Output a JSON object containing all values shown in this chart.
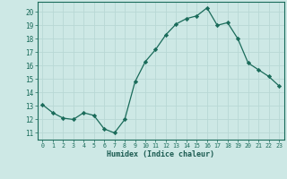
{
  "x": [
    0,
    1,
    2,
    3,
    4,
    5,
    6,
    7,
    8,
    9,
    10,
    11,
    12,
    13,
    14,
    15,
    16,
    17,
    18,
    19,
    20,
    21,
    22,
    23
  ],
  "y": [
    13.1,
    12.5,
    12.1,
    12.0,
    12.5,
    12.3,
    11.3,
    11.0,
    12.0,
    14.8,
    16.3,
    17.2,
    18.3,
    19.1,
    19.5,
    19.7,
    20.3,
    19.0,
    19.2,
    18.0,
    16.2,
    15.7,
    15.2,
    14.5
  ],
  "line_color": "#1a6b5a",
  "marker": "D",
  "marker_size": 2.2,
  "bg_color": "#cde8e5",
  "grid_color": "#b8d8d5",
  "tick_label_color": "#1a6b5a",
  "xlabel": "Humidex (Indice chaleur)",
  "xlabel_color": "#1a5a50",
  "ylabel_ticks": [
    11,
    12,
    13,
    14,
    15,
    16,
    17,
    18,
    19,
    20
  ],
  "xlim": [
    -0.5,
    23.5
  ],
  "ylim": [
    10.5,
    20.75
  ]
}
